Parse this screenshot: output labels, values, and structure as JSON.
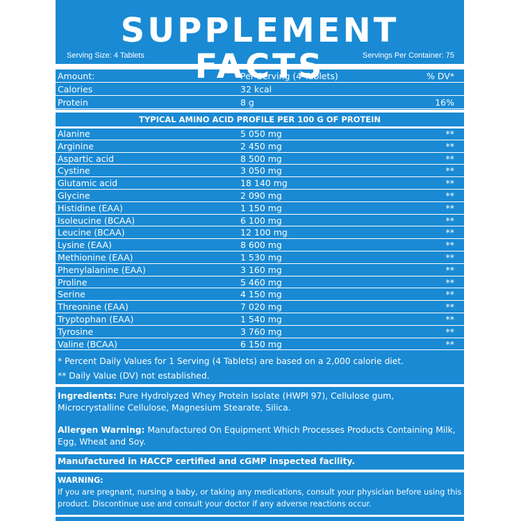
{
  "title": "SUPPLEMENT FACTS",
  "serving_size": "Serving Size: 4 Tablets",
  "servings_per_container": "Servings Per Container: 75",
  "header": {
    "amount": "Amount:",
    "per_serving": "Per Serving (4 Tablets)",
    "dv": "% DV*"
  },
  "top_rows": [
    {
      "name": "Calories",
      "amount": "32 kcal",
      "dv": ""
    },
    {
      "name": "Protein",
      "amount": "8 g",
      "dv": "16%"
    }
  ],
  "amino_header": "TYPICAL AMINO ACID PROFILE PER 100 G OF PROTEIN",
  "amino_rows": [
    {
      "name": "Alanine",
      "amount": "5 050 mg",
      "dv": "**"
    },
    {
      "name": "Arginine",
      "amount": "2 450 mg",
      "dv": "**"
    },
    {
      "name": "Aspartic acid",
      "amount": "8 500 mg",
      "dv": "**"
    },
    {
      "name": "Cystine",
      "amount": "3 050 mg",
      "dv": "**"
    },
    {
      "name": "Glutamic acid",
      "amount": "18 140 mg",
      "dv": "**"
    },
    {
      "name": "Glycine",
      "amount": "2 090 mg",
      "dv": "**"
    },
    {
      "name": "Histidine (EAA)",
      "amount": "1 150 mg",
      "dv": "**"
    },
    {
      "name": "Isoleucine (BCAA)",
      "amount": "6 100 mg",
      "dv": "**"
    },
    {
      "name": "Leucine (BCAA)",
      "amount": "12 100 mg",
      "dv": "**"
    },
    {
      "name": "Lysine (EAA)",
      "amount": "8 600 mg",
      "dv": "**"
    },
    {
      "name": "Methionine (EAA)",
      "amount": "1 530 mg",
      "dv": "**"
    },
    {
      "name": "Phenylalanine (EAA)",
      "amount": "3 160 mg",
      "dv": "**"
    },
    {
      "name": "Proline",
      "amount": "5 460 mg",
      "dv": "**"
    },
    {
      "name": "Serine",
      "amount": "4 150 mg",
      "dv": "**"
    },
    {
      "name": "Threonine (EAA)",
      "amount": "7 020 mg",
      "dv": "**"
    },
    {
      "name": "Tryptophan (EAA)",
      "amount": "1 540 mg",
      "dv": "**"
    },
    {
      "name": "Tyrosine",
      "amount": "3 760 mg",
      "dv": "**"
    },
    {
      "name": "Valine (BCAA)",
      "amount": "6 150 mg",
      "dv": "**"
    }
  ],
  "footnote_dv": "* Percent Daily Values for 1 Serving (4 Tablets) are based on a 2,000 calorie diet.",
  "footnote_not_established": "** Daily Value (DV) not established.",
  "ingredients_label": "Ingredients:",
  "ingredients_text": "Pure Hydrolyzed Whey Protein Isolate (HWPI 97), Cellulose gum, Microcrystalline Cellulose, Magnesium Stearate, Silica.",
  "allergen_label": "Allergen Warning:",
  "allergen_text": "Manufactured On Equipment Which Processes Products Containing Milk, Egg, Wheat and Soy.",
  "manufactured": "Manufactured in HACCP certified and cGMP inspected facility.",
  "warning_label": "WARNING:",
  "warning_text": "If you are pregnant, nursing a baby, or taking any medications, consult your physician before using this product. Discontinue use and consult your doctor if any adverse reactions occur.",
  "colors": {
    "panel": "#1a8ad4",
    "text": "#ffffff",
    "page": "#ffffff"
  }
}
